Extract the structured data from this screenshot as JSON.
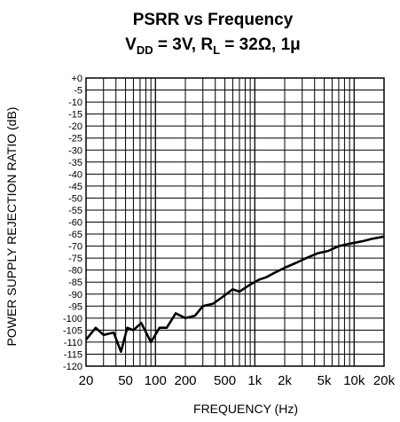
{
  "chart_data": {
    "type": "line",
    "title": "PSRR vs Frequency",
    "subtitle": {
      "vdd_label": "V",
      "vdd_sub": "DD",
      "vdd_value": " = 3V, R",
      "rl_sub": "L",
      "rl_value": " = 32Ω, 1μ"
    },
    "xlabel": "FREQUENCY (Hz)",
    "ylabel": "POWER SUPPLY REJECTION RATIO (dB)",
    "xscale": "log",
    "xlim": [
      20,
      20000
    ],
    "ylim": [
      -120,
      0
    ],
    "grid": true,
    "x_ticks": [
      {
        "value": 20,
        "label": "20"
      },
      {
        "value": 50,
        "label": "50"
      },
      {
        "value": 100,
        "label": "100"
      },
      {
        "value": 200,
        "label": "200"
      },
      {
        "value": 500,
        "label": "500"
      },
      {
        "value": 1000,
        "label": "1k"
      },
      {
        "value": 2000,
        "label": "2k"
      },
      {
        "value": 5000,
        "label": "5k"
      },
      {
        "value": 10000,
        "label": "10k"
      },
      {
        "value": 20000,
        "label": "20k"
      }
    ],
    "y_ticks": [
      {
        "value": 0,
        "label": "+0"
      },
      {
        "value": -5,
        "label": "-5"
      },
      {
        "value": -10,
        "label": "-10"
      },
      {
        "value": -15,
        "label": "-15"
      },
      {
        "value": -20,
        "label": "-20"
      },
      {
        "value": -25,
        "label": "-25"
      },
      {
        "value": -30,
        "label": "-30"
      },
      {
        "value": -35,
        "label": "-35"
      },
      {
        "value": -40,
        "label": "-40"
      },
      {
        "value": -45,
        "label": "-45"
      },
      {
        "value": -50,
        "label": "-50"
      },
      {
        "value": -55,
        "label": "-55"
      },
      {
        "value": -60,
        "label": "-60"
      },
      {
        "value": -65,
        "label": "-65"
      },
      {
        "value": -70,
        "label": "-70"
      },
      {
        "value": -75,
        "label": "-75"
      },
      {
        "value": -80,
        "label": "-80"
      },
      {
        "value": -85,
        "label": "-85"
      },
      {
        "value": -90,
        "label": "-90"
      },
      {
        "value": -95,
        "label": "-95"
      },
      {
        "value": -100,
        "label": "-100"
      },
      {
        "value": -105,
        "label": "-105"
      },
      {
        "value": -110,
        "label": "-110"
      },
      {
        "value": -115,
        "label": "-115"
      },
      {
        "value": -120,
        "label": "-120"
      }
    ],
    "series": [
      {
        "color": "#000000",
        "x": [
          20,
          25,
          30,
          38,
          45,
          52,
          60,
          72,
          90,
          110,
          130,
          160,
          200,
          250,
          300,
          380,
          480,
          600,
          700,
          900,
          1100,
          1300,
          1600,
          2000,
          2600,
          3300,
          4300,
          5500,
          7000,
          9000,
          12000,
          15000,
          20000
        ],
        "y": [
          -109,
          -104,
          -107,
          -106,
          -114,
          -104,
          -105,
          -102,
          -110,
          -104,
          -104,
          -98,
          -100,
          -99,
          -95,
          -94,
          -91,
          -88,
          -89,
          -86,
          -84,
          -83,
          -81,
          -79,
          -77,
          -75,
          -73,
          -72,
          -70,
          -69,
          -68,
          -67,
          -66
        ]
      }
    ]
  }
}
